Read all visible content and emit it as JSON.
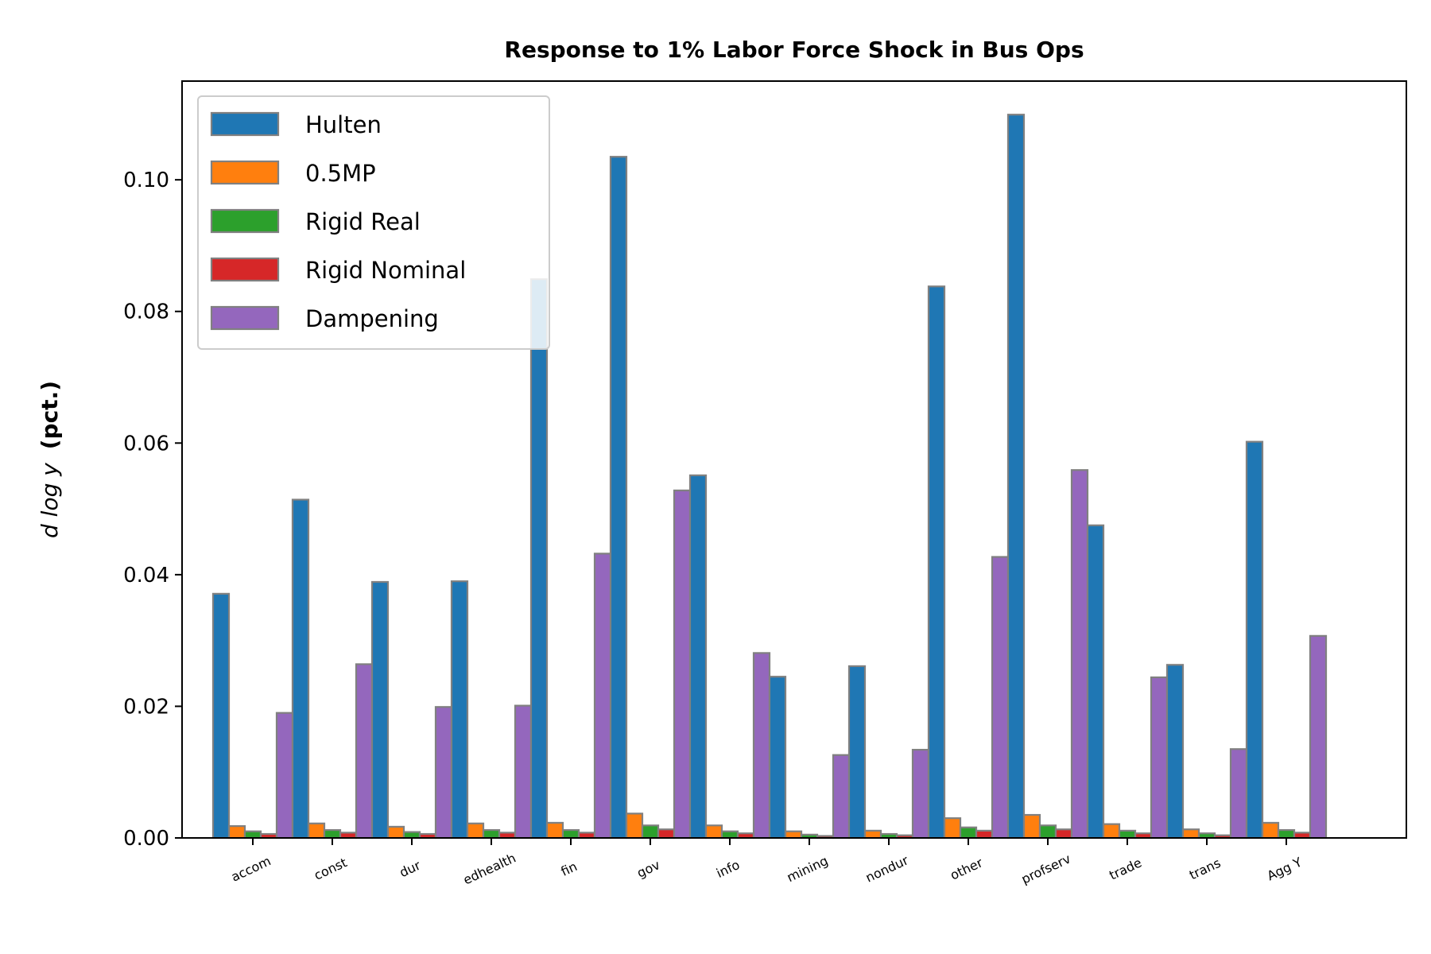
{
  "chart_data": {
    "type": "bar",
    "title": "Response to 1% Labor Force Shock in Bus Ops",
    "ylabel_italic": "d log y",
    "ylabel_bold": "(pct.)",
    "xlabel": "",
    "ylim": [
      0,
      0.115
    ],
    "yticks": [
      0.0,
      0.02,
      0.04,
      0.06,
      0.08,
      0.1
    ],
    "ytick_labels": [
      "0.00",
      "0.02",
      "0.04",
      "0.06",
      "0.08",
      "0.10"
    ],
    "grid": false,
    "legend_position": "top-left",
    "categories": [
      "accom",
      "const",
      "dur",
      "edhealth",
      "fin",
      "gov",
      "info",
      "mining",
      "nondur",
      "other",
      "profserv",
      "trade",
      "trans",
      "Agg Y"
    ],
    "series": [
      {
        "name": "Hulten",
        "color": "#1f77b4",
        "values": [
          0.0371,
          0.0514,
          0.0389,
          0.039,
          0.0849,
          0.1035,
          0.0551,
          0.0245,
          0.0261,
          0.0838,
          0.1099,
          0.0475,
          0.0263,
          0.0602
        ]
      },
      {
        "name": "0.5MP",
        "color": "#ff7f0e",
        "values": [
          0.0018,
          0.0022,
          0.0017,
          0.0022,
          0.0023,
          0.0037,
          0.0019,
          0.001,
          0.0011,
          0.003,
          0.0035,
          0.0021,
          0.0013,
          0.0023
        ]
      },
      {
        "name": "Rigid Real",
        "color": "#2ca02c",
        "values": [
          0.001,
          0.0012,
          0.0009,
          0.0012,
          0.0012,
          0.0019,
          0.001,
          0.0005,
          0.0006,
          0.0016,
          0.0019,
          0.0011,
          0.0007,
          0.0012
        ]
      },
      {
        "name": "Rigid Nominal",
        "color": "#d62728",
        "values": [
          0.0006,
          0.0008,
          0.0006,
          0.0008,
          0.0008,
          0.0013,
          0.0007,
          0.0003,
          0.0004,
          0.0011,
          0.0013,
          0.0007,
          0.0004,
          0.0008
        ]
      },
      {
        "name": "Dampening",
        "color": "#9467bd",
        "values": [
          0.019,
          0.0264,
          0.0199,
          0.0201,
          0.0432,
          0.0528,
          0.0281,
          0.0126,
          0.0134,
          0.0427,
          0.0559,
          0.0244,
          0.0135,
          0.0307
        ]
      }
    ]
  }
}
